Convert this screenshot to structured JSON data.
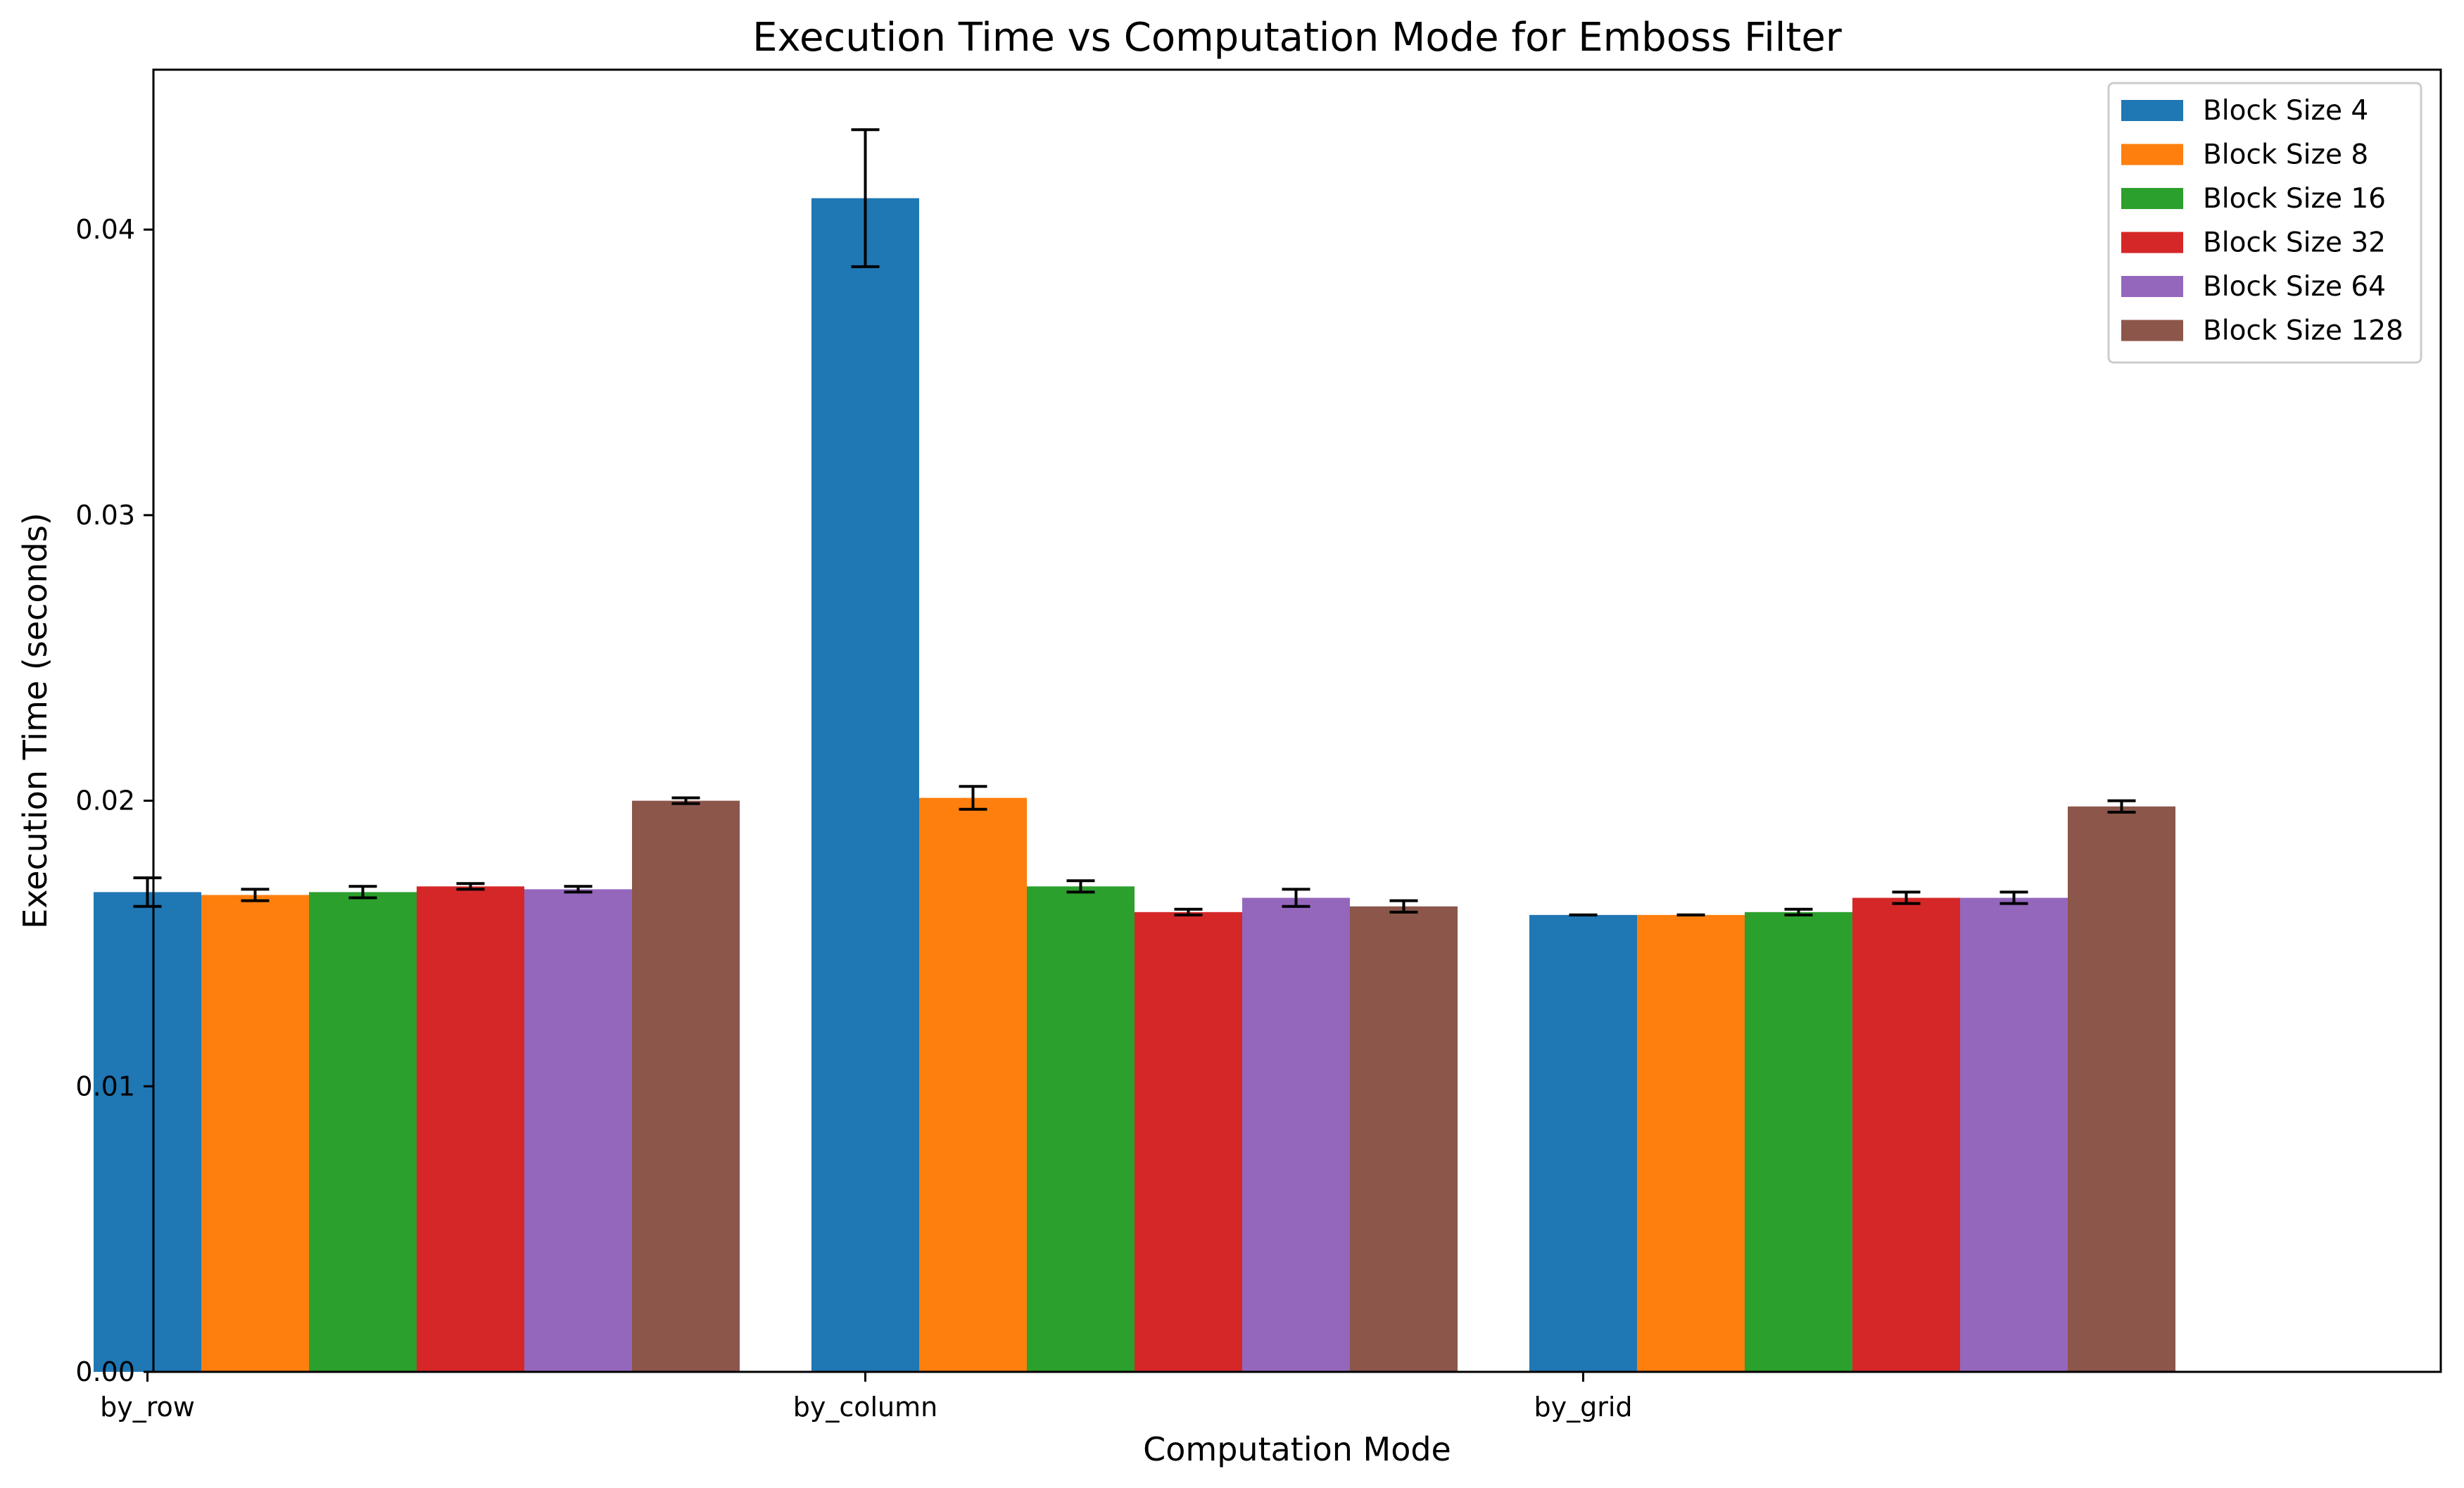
{
  "chart_data": {
    "type": "bar",
    "title": "Execution Time vs Computation Mode for Emboss Filter",
    "xlabel": "Computation Mode",
    "ylabel": "Execution Time (seconds)",
    "categories": [
      "by_row",
      "by_column",
      "by_grid"
    ],
    "ylim": [
      0,
      0.0456
    ],
    "yticks": [
      0.0,
      0.01,
      0.02,
      0.03,
      0.04
    ],
    "ytick_labels": [
      "0.00",
      "0.01",
      "0.02",
      "0.03",
      "0.04"
    ],
    "legend_position": "top-right",
    "grid": false,
    "series": [
      {
        "name": "Block Size 4",
        "color": "#1f77b4",
        "values": [
          0.0168,
          0.0411,
          0.016
        ],
        "errors": [
          0.0005,
          0.0024,
          0.0
        ]
      },
      {
        "name": "Block Size 8",
        "color": "#ff7f0e",
        "values": [
          0.0167,
          0.0201,
          0.016
        ],
        "errors": [
          0.0002,
          0.0004,
          0.0
        ]
      },
      {
        "name": "Block Size 16",
        "color": "#2ca02c",
        "values": [
          0.0168,
          0.017,
          0.0161
        ],
        "errors": [
          0.0002,
          0.0002,
          0.0001
        ]
      },
      {
        "name": "Block Size 32",
        "color": "#d62728",
        "values": [
          0.017,
          0.0161,
          0.0166
        ],
        "errors": [
          0.0001,
          0.0001,
          0.0002
        ]
      },
      {
        "name": "Block Size 64",
        "color": "#9467bd",
        "values": [
          0.0169,
          0.0166,
          0.0166
        ],
        "errors": [
          0.0001,
          0.0003,
          0.0002
        ]
      },
      {
        "name": "Block Size 128",
        "color": "#8c564b",
        "values": [
          0.02,
          0.0163,
          0.0198
        ],
        "errors": [
          0.0001,
          0.0002,
          0.0002
        ]
      }
    ]
  }
}
